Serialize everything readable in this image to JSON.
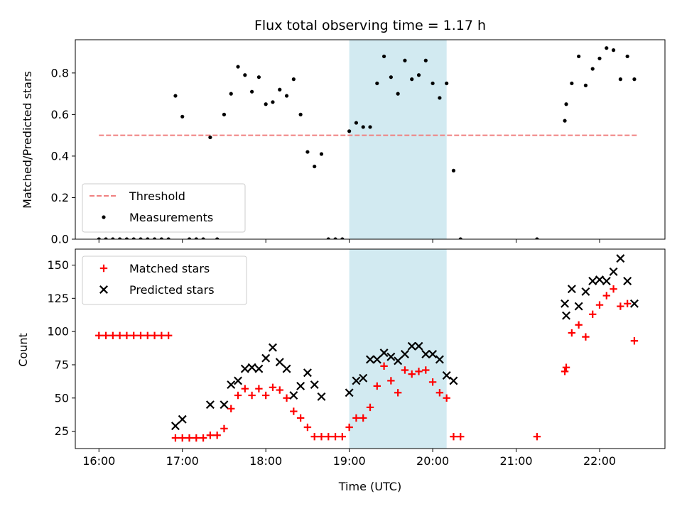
{
  "chart_data": {
    "title": "Flux total observing time = 1.17 h",
    "xlabel": "Time (UTC)",
    "x_ticks": [
      "16:00",
      "17:00",
      "18:00",
      "19:00",
      "20:00",
      "21:00",
      "22:00"
    ],
    "x_range": [
      "15:43",
      "22:47"
    ],
    "shaded_region": {
      "start": "19:00",
      "end": "20:10",
      "color": "#add8e6"
    },
    "panels": [
      {
        "type": "scatter",
        "ylabel": "Matched/Predicted stars",
        "ylim": [
          0,
          0.96
        ],
        "y_ticks": [
          "0.0",
          "0.2",
          "0.4",
          "0.6",
          "0.8"
        ],
        "threshold": {
          "name": "Threshold",
          "value": 0.5,
          "x_start": "16:00",
          "x_end": "22:27",
          "color": "#f08080",
          "style": "dashed"
        },
        "series": [
          {
            "name": "Measurements",
            "marker": "dot",
            "color": "#000000",
            "points": [
              [
                "16:00",
                0
              ],
              [
                "16:05",
                0
              ],
              [
                "16:10",
                0
              ],
              [
                "16:15",
                0
              ],
              [
                "16:20",
                0
              ],
              [
                "16:25",
                0
              ],
              [
                "16:30",
                0
              ],
              [
                "16:35",
                0
              ],
              [
                "16:40",
                0
              ],
              [
                "16:45",
                0
              ],
              [
                "16:50",
                0
              ],
              [
                "16:55",
                0.69
              ],
              [
                "17:00",
                0.59
              ],
              [
                "17:05",
                0
              ],
              [
                "17:10",
                0
              ],
              [
                "17:15",
                0
              ],
              [
                "17:20",
                0.49
              ],
              [
                "17:25",
                0
              ],
              [
                "17:30",
                0.6
              ],
              [
                "17:35",
                0.7
              ],
              [
                "17:40",
                0.83
              ],
              [
                "17:45",
                0.79
              ],
              [
                "17:50",
                0.71
              ],
              [
                "17:55",
                0.78
              ],
              [
                "18:00",
                0.65
              ],
              [
                "18:05",
                0.66
              ],
              [
                "18:10",
                0.72
              ],
              [
                "18:15",
                0.69
              ],
              [
                "18:20",
                0.77
              ],
              [
                "18:25",
                0.6
              ],
              [
                "18:30",
                0.42
              ],
              [
                "18:35",
                0.35
              ],
              [
                "18:40",
                0.41
              ],
              [
                "18:45",
                0
              ],
              [
                "18:50",
                0
              ],
              [
                "18:55",
                0
              ],
              [
                "19:00",
                0.52
              ],
              [
                "19:05",
                0.56
              ],
              [
                "19:10",
                0.54
              ],
              [
                "19:15",
                0.54
              ],
              [
                "19:20",
                0.75
              ],
              [
                "19:25",
                0.88
              ],
              [
                "19:30",
                0.78
              ],
              [
                "19:35",
                0.7
              ],
              [
                "19:40",
                0.86
              ],
              [
                "19:45",
                0.77
              ],
              [
                "19:50",
                0.79
              ],
              [
                "19:55",
                0.86
              ],
              [
                "20:00",
                0.75
              ],
              [
                "20:05",
                0.68
              ],
              [
                "20:10",
                0.75
              ],
              [
                "20:15",
                0.33
              ],
              [
                "20:20",
                0
              ],
              [
                "21:15",
                0
              ],
              [
                "21:35",
                0.57
              ],
              [
                "21:36",
                0.65
              ],
              [
                "21:40",
                0.75
              ],
              [
                "21:45",
                0.88
              ],
              [
                "21:50",
                0.74
              ],
              [
                "21:55",
                0.82
              ],
              [
                "22:00",
                0.87
              ],
              [
                "22:05",
                0.92
              ],
              [
                "22:10",
                0.91
              ],
              [
                "22:15",
                0.77
              ],
              [
                "22:20",
                0.88
              ],
              [
                "22:25",
                0.77
              ]
            ]
          }
        ],
        "legend": {
          "location": "lower-left",
          "entries": [
            "Threshold",
            "Measurements"
          ]
        }
      },
      {
        "type": "scatter",
        "ylabel": "Count",
        "ylim": [
          12,
          162
        ],
        "y_ticks": [
          "25",
          "50",
          "75",
          "100",
          "125",
          "150"
        ],
        "series": [
          {
            "name": "Matched stars",
            "marker": "plus",
            "color": "#ff0000",
            "points": [
              [
                "16:00",
                97
              ],
              [
                "16:05",
                97
              ],
              [
                "16:10",
                97
              ],
              [
                "16:15",
                97
              ],
              [
                "16:20",
                97
              ],
              [
                "16:25",
                97
              ],
              [
                "16:30",
                97
              ],
              [
                "16:35",
                97
              ],
              [
                "16:40",
                97
              ],
              [
                "16:45",
                97
              ],
              [
                "16:50",
                97
              ],
              [
                "16:55",
                20
              ],
              [
                "17:00",
                20
              ],
              [
                "17:05",
                20
              ],
              [
                "17:10",
                20
              ],
              [
                "17:15",
                20
              ],
              [
                "17:20",
                22
              ],
              [
                "17:25",
                22
              ],
              [
                "17:30",
                27
              ],
              [
                "17:35",
                42
              ],
              [
                "17:40",
                52
              ],
              [
                "17:45",
                57
              ],
              [
                "17:50",
                52
              ],
              [
                "17:55",
                57
              ],
              [
                "18:00",
                52
              ],
              [
                "18:05",
                58
              ],
              [
                "18:10",
                56
              ],
              [
                "18:15",
                50
              ],
              [
                "18:20",
                40
              ],
              [
                "18:25",
                35
              ],
              [
                "18:30",
                28
              ],
              [
                "18:35",
                21
              ],
              [
                "18:40",
                21
              ],
              [
                "18:45",
                21
              ],
              [
                "18:50",
                21
              ],
              [
                "18:55",
                21
              ],
              [
                "19:00",
                28
              ],
              [
                "19:05",
                35
              ],
              [
                "19:10",
                35
              ],
              [
                "19:15",
                43
              ],
              [
                "19:20",
                59
              ],
              [
                "19:25",
                74
              ],
              [
                "19:30",
                63
              ],
              [
                "19:35",
                54
              ],
              [
                "19:40",
                71
              ],
              [
                "19:45",
                68
              ],
              [
                "19:50",
                70
              ],
              [
                "19:55",
                71
              ],
              [
                "20:00",
                62
              ],
              [
                "20:05",
                54
              ],
              [
                "20:10",
                50
              ],
              [
                "20:15",
                21
              ],
              [
                "20:20",
                21
              ],
              [
                "21:15",
                21
              ],
              [
                "21:35",
                70
              ],
              [
                "21:36",
                73
              ],
              [
                "21:40",
                99
              ],
              [
                "21:45",
                105
              ],
              [
                "21:50",
                96
              ],
              [
                "21:55",
                113
              ],
              [
                "22:00",
                120
              ],
              [
                "22:05",
                127
              ],
              [
                "22:10",
                132
              ],
              [
                "22:15",
                119
              ],
              [
                "22:20",
                121
              ],
              [
                "22:25",
                93
              ]
            ]
          },
          {
            "name": "Predicted stars",
            "marker": "cross",
            "color": "#000000",
            "points": [
              [
                "16:55",
                29
              ],
              [
                "17:00",
                34
              ],
              [
                "17:20",
                45
              ],
              [
                "17:30",
                45
              ],
              [
                "17:35",
                60
              ],
              [
                "17:40",
                63
              ],
              [
                "17:45",
                72
              ],
              [
                "17:50",
                73
              ],
              [
                "17:55",
                72
              ],
              [
                "18:00",
                80
              ],
              [
                "18:05",
                88
              ],
              [
                "18:10",
                77
              ],
              [
                "18:15",
                72
              ],
              [
                "18:20",
                52
              ],
              [
                "18:25",
                59
              ],
              [
                "18:30",
                69
              ],
              [
                "18:35",
                60
              ],
              [
                "18:40",
                51
              ],
              [
                "19:00",
                54
              ],
              [
                "19:05",
                63
              ],
              [
                "19:10",
                65
              ],
              [
                "19:15",
                79
              ],
              [
                "19:20",
                79
              ],
              [
                "19:25",
                84
              ],
              [
                "19:30",
                81
              ],
              [
                "19:35",
                78
              ],
              [
                "19:40",
                83
              ],
              [
                "19:45",
                89
              ],
              [
                "19:50",
                89
              ],
              [
                "19:55",
                83
              ],
              [
                "20:00",
                83
              ],
              [
                "20:05",
                79
              ],
              [
                "20:10",
                67
              ],
              [
                "20:15",
                63
              ],
              [
                "21:35",
                121
              ],
              [
                "21:36",
                112
              ],
              [
                "21:40",
                132
              ],
              [
                "21:45",
                119
              ],
              [
                "21:50",
                130
              ],
              [
                "21:55",
                138
              ],
              [
                "22:00",
                139
              ],
              [
                "22:05",
                138
              ],
              [
                "22:10",
                145
              ],
              [
                "22:15",
                155
              ],
              [
                "22:20",
                138
              ],
              [
                "22:25",
                121
              ]
            ]
          }
        ],
        "legend": {
          "location": "upper-left",
          "entries": [
            "Matched stars",
            "Predicted stars"
          ]
        }
      }
    ]
  }
}
